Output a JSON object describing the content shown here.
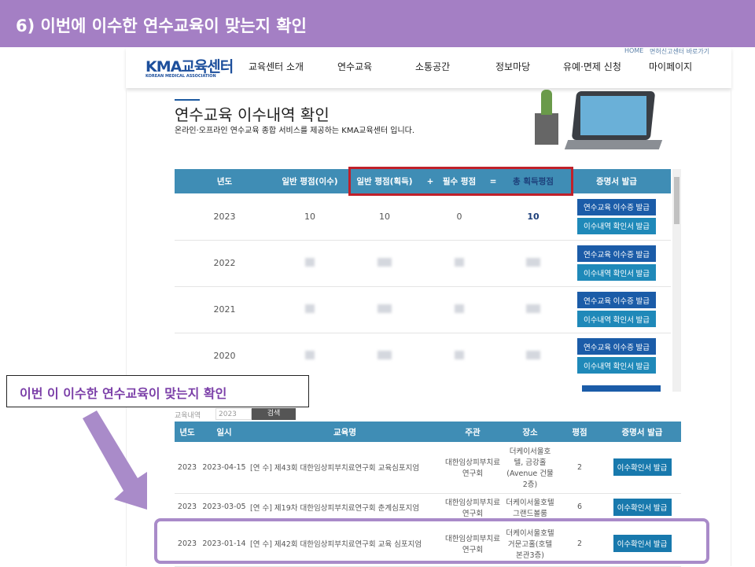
{
  "slide_title": "6) 이번에 이수한 연수교육이 맞는지 확인",
  "header": {
    "logo": "KMA교육센터",
    "logo_sub": "KOREAN MEDICAL ASSOCIATION",
    "top_links": [
      "HOME",
      "면허신고센터 바로가기"
    ],
    "nav": [
      "교육센터 소개",
      "연수교육",
      "소통공간",
      "정보마당",
      "유예·면제 신청",
      "마이페이지"
    ]
  },
  "page": {
    "title": "연수교육 이수내역 확인",
    "subtitle": "온라인·오프라인 연수교육 종합 서비스를 제공하는 KMA교육센터 입니다."
  },
  "summary": {
    "headers": [
      "년도",
      "일반 평점(이수)",
      "일반 평점(획득)",
      "+",
      "필수 평점",
      "=",
      "총 획득평점",
      "증명서 발급"
    ],
    "rows": [
      {
        "year": "2023",
        "general_done": "10",
        "general_earned": "10",
        "required": "0",
        "total": "10"
      },
      {
        "year": "2022"
      },
      {
        "year": "2021"
      },
      {
        "year": "2020"
      }
    ],
    "btn_cert": "연수교육 이수증 발급",
    "btn_confirm": "이수내역 확인서 발급"
  },
  "filter": {
    "label": "교육내역",
    "year": "2023",
    "search": "검색"
  },
  "callout": "이번 이 이수한 연수교육이 맞는지 확인",
  "detail": {
    "headers": [
      "년도",
      "일시",
      "교육명",
      "주관",
      "장소",
      "평점",
      "증명서 발급"
    ],
    "rows": [
      {
        "year": "2023",
        "date": "2023-04-15",
        "name": "[연 수] 제43회 대한임상피부치료연구회 교육심포지엄",
        "org": "대한임상피부치료연구회",
        "place": "더케이서울호텔, 금강홀(Avenue 건물 2층)",
        "score": "2"
      },
      {
        "year": "2023",
        "date": "2023-03-05",
        "name": "[연 수] 제19차 대한임상피부치료연구회 춘계심포지엄",
        "org": "대한임상피부치료연구회",
        "place": "더케이서울호텔 그랜드볼룸",
        "score": "6"
      },
      {
        "year": "2023",
        "date": "2023-01-14",
        "name": "[연 수] 제42회 대한임상피부치료연구회 교육 심포지엄",
        "org": "대한임상피부치료연구회",
        "place": "더케이서울호텔 거문고홀(호텔 본관3층)",
        "score": "2"
      }
    ],
    "btn": "이수확인서 발급"
  },
  "colors": {
    "banner": "#a47fc4",
    "table_header": "#3f8db5",
    "highlight_red": "#c0202a",
    "highlight_purple": "#a98bc9"
  }
}
